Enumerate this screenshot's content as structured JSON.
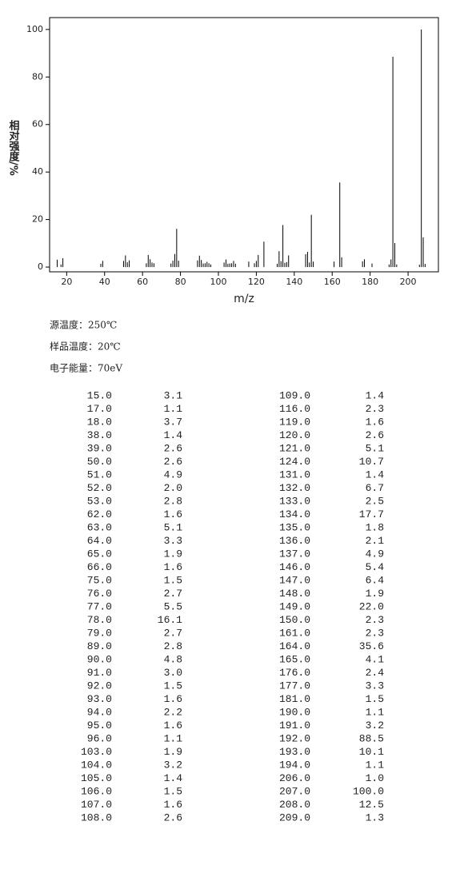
{
  "chart_data": {
    "type": "stick",
    "x_label": "m/z",
    "y_label": "相对强度/%",
    "x": [
      15,
      17,
      18,
      38,
      39,
      50,
      51,
      52,
      53,
      62,
      63,
      64,
      65,
      66,
      75,
      76,
      77,
      78,
      79,
      89,
      90,
      91,
      92,
      93,
      94,
      95,
      96,
      103,
      104,
      105,
      106,
      107,
      108,
      109,
      116,
      119,
      120,
      121,
      124,
      131,
      132,
      133,
      134,
      135,
      136,
      137,
      146,
      147,
      148,
      149,
      150,
      161,
      164,
      165,
      176,
      177,
      181,
      190,
      191,
      192,
      193,
      194,
      206,
      207,
      208,
      209
    ],
    "x_labels": [
      "15.0",
      "17.0",
      "18.0",
      "38.0",
      "39.0",
      "50.0",
      "51.0",
      "52.0",
      "53.0",
      "62.0",
      "63.0",
      "64.0",
      "65.0",
      "66.0",
      "75.0",
      "76.0",
      "77.0",
      "78.0",
      "79.0",
      "89.0",
      "90.0",
      "91.0",
      "92.0",
      "93.0",
      "94.0",
      "95.0",
      "96.0",
      "103.0",
      "104.0",
      "105.0",
      "106.0",
      "107.0",
      "108.0",
      "109.0",
      "116.0",
      "119.0",
      "120.0",
      "121.0",
      "124.0",
      "131.0",
      "132.0",
      "133.0",
      "134.0",
      "135.0",
      "136.0",
      "137.0",
      "146.0",
      "147.0",
      "148.0",
      "149.0",
      "150.0",
      "161.0",
      "164.0",
      "165.0",
      "176.0",
      "177.0",
      "181.0",
      "190.0",
      "191.0",
      "192.0",
      "193.0",
      "194.0",
      "206.0",
      "207.0",
      "208.0",
      "209.0"
    ],
    "values": [
      3.1,
      1.1,
      3.7,
      1.4,
      2.6,
      2.6,
      4.9,
      2.0,
      2.8,
      1.6,
      5.1,
      3.3,
      1.9,
      1.6,
      1.5,
      2.7,
      5.5,
      16.1,
      2.7,
      2.8,
      4.8,
      3.0,
      1.5,
      1.6,
      2.2,
      1.6,
      1.1,
      1.9,
      3.2,
      1.4,
      1.5,
      1.6,
      2.6,
      1.4,
      2.3,
      1.6,
      2.6,
      5.1,
      10.7,
      1.4,
      6.7,
      2.5,
      17.7,
      1.8,
      2.1,
      4.9,
      5.4,
      6.4,
      1.9,
      22.0,
      2.3,
      2.3,
      35.6,
      4.1,
      2.4,
      3.3,
      1.5,
      1.1,
      3.2,
      88.5,
      10.1,
      1.1,
      1.0,
      100.0,
      12.5,
      1.3
    ],
    "value_labels": [
      "3.1",
      "1.1",
      "3.7",
      "1.4",
      "2.6",
      "2.6",
      "4.9",
      "2.0",
      "2.8",
      "1.6",
      "5.1",
      "3.3",
      "1.9",
      "1.6",
      "1.5",
      "2.7",
      "5.5",
      "16.1",
      "2.7",
      "2.8",
      "4.8",
      "3.0",
      "1.5",
      "1.6",
      "2.2",
      "1.6",
      "1.1",
      "1.9",
      "3.2",
      "1.4",
      "1.5",
      "1.6",
      "2.6",
      "1.4",
      "2.3",
      "1.6",
      "2.6",
      "5.1",
      "10.7",
      "1.4",
      "6.7",
      "2.5",
      "17.7",
      "1.8",
      "2.1",
      "4.9",
      "5.4",
      "6.4",
      "1.9",
      "22.0",
      "2.3",
      "2.3",
      "35.6",
      "4.1",
      "2.4",
      "3.3",
      "1.5",
      "1.1",
      "3.2",
      "88.5",
      "10.1",
      "1.1",
      "1.0",
      "100.0",
      "12.5",
      "1.3"
    ],
    "color": "#000000",
    "xlim": [
      11,
      216
    ],
    "ylim": [
      -2,
      105
    ],
    "xticks": [
      20,
      40,
      60,
      80,
      100,
      120,
      140,
      160,
      180,
      200
    ],
    "yticks": [
      0,
      20,
      40,
      60,
      80,
      100
    ]
  },
  "conditions": [
    "源温度：250℃",
    "样品温度：20℃",
    "电子能量：70eV"
  ]
}
